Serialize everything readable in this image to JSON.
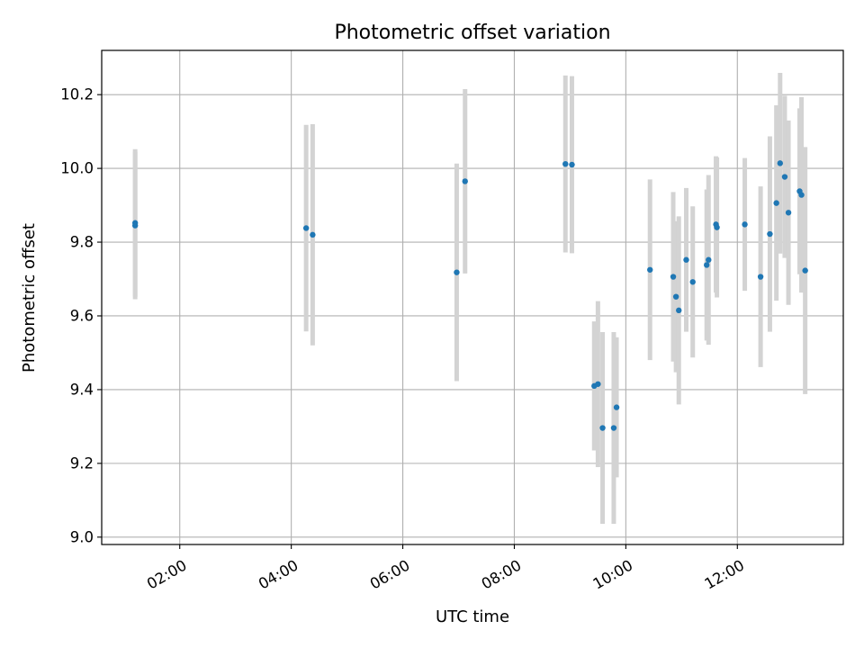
{
  "chart_data": {
    "type": "scatter",
    "title": "Photometric offset variation",
    "xlabel": "UTC time",
    "ylabel": "Photometric offset",
    "xlim": [
      "00:36",
      "13:54"
    ],
    "ylim": [
      8.98,
      10.32
    ],
    "x_ticks": [
      "02:00",
      "04:00",
      "06:00",
      "08:00",
      "10:00",
      "12:00"
    ],
    "y_ticks": [
      9.0,
      9.2,
      9.4,
      9.6,
      9.8,
      10.0,
      10.2
    ],
    "grid": true,
    "legend": "none",
    "colors": {
      "points": "#1f77b4",
      "error_bars": "#d3d3d3",
      "grid": "#b0b0b0"
    },
    "points": [
      {
        "x": "01:12",
        "y": 9.852,
        "yerr": 0.2
      },
      {
        "x": "01:12",
        "y": 9.845,
        "yerr": 0.2
      },
      {
        "x": "04:16",
        "y": 9.838,
        "yerr": 0.28
      },
      {
        "x": "04:23",
        "y": 9.82,
        "yerr": 0.3
      },
      {
        "x": "06:58",
        "y": 9.718,
        "yerr": 0.295
      },
      {
        "x": "07:07",
        "y": 9.965,
        "yerr": 0.25
      },
      {
        "x": "08:55",
        "y": 10.012,
        "yerr": 0.24
      },
      {
        "x": "09:02",
        "y": 10.01,
        "yerr": 0.24
      },
      {
        "x": "09:26",
        "y": 9.41,
        "yerr": 0.175
      },
      {
        "x": "09:30",
        "y": 9.415,
        "yerr": 0.225
      },
      {
        "x": "09:35",
        "y": 9.296,
        "yerr": 0.26
      },
      {
        "x": "09:47",
        "y": 9.296,
        "yerr": 0.26
      },
      {
        "x": "09:50",
        "y": 9.352,
        "yerr": 0.19
      },
      {
        "x": "10:26",
        "y": 9.725,
        "yerr": 0.245
      },
      {
        "x": "10:51",
        "y": 9.706,
        "yerr": 0.23
      },
      {
        "x": "10:54",
        "y": 9.652,
        "yerr": 0.205
      },
      {
        "x": "10:57",
        "y": 9.615,
        "yerr": 0.255
      },
      {
        "x": "11:05",
        "y": 9.752,
        "yerr": 0.195
      },
      {
        "x": "11:12",
        "y": 9.692,
        "yerr": 0.205
      },
      {
        "x": "11:27",
        "y": 9.738,
        "yerr": 0.205
      },
      {
        "x": "11:29",
        "y": 9.752,
        "yerr": 0.23
      },
      {
        "x": "11:37",
        "y": 9.848,
        "yerr": 0.185
      },
      {
        "x": "11:38",
        "y": 9.84,
        "yerr": 0.19
      },
      {
        "x": "12:08",
        "y": 9.848,
        "yerr": 0.18
      },
      {
        "x": "12:25",
        "y": 9.706,
        "yerr": 0.245
      },
      {
        "x": "12:35",
        "y": 9.822,
        "yerr": 0.265
      },
      {
        "x": "12:42",
        "y": 9.906,
        "yerr": 0.265
      },
      {
        "x": "12:46",
        "y": 10.014,
        "yerr": 0.245
      },
      {
        "x": "12:51",
        "y": 9.977,
        "yerr": 0.22
      },
      {
        "x": "12:55",
        "y": 9.88,
        "yerr": 0.25
      },
      {
        "x": "13:07",
        "y": 9.938,
        "yerr": 0.225
      },
      {
        "x": "13:09",
        "y": 9.928,
        "yerr": 0.265
      },
      {
        "x": "13:13",
        "y": 9.723,
        "yerr": 0.335
      }
    ]
  }
}
